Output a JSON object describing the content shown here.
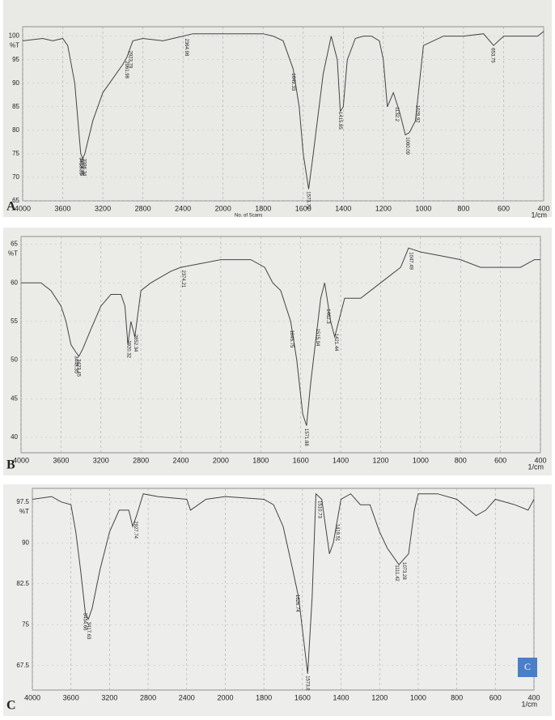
{
  "chart_data": [
    {
      "type": "line",
      "panel": "A",
      "ylabel": "%T",
      "xlabel": "1/cm",
      "footnote": "No. of Scans",
      "xlim": [
        4000,
        400
      ],
      "xticks": [
        4000,
        3600,
        3200,
        2800,
        2400,
        2000,
        1800,
        1600,
        1400,
        1200,
        1000,
        800,
        600,
        400
      ],
      "ylim": [
        65,
        102
      ],
      "yticks": [
        65,
        70,
        75,
        80,
        85,
        90,
        95,
        100
      ],
      "grid": true,
      "color": "#444444",
      "x": [
        4000,
        3800,
        3700,
        3600,
        3550,
        3480,
        3420,
        3400,
        3380,
        3300,
        3200,
        3000,
        2960,
        2900,
        2800,
        2600,
        2400,
        2300,
        2000,
        1800,
        1750,
        1700,
        1650,
        1620,
        1600,
        1573,
        1550,
        1500,
        1460,
        1430,
        1415,
        1400,
        1380,
        1340,
        1300,
        1260,
        1220,
        1200,
        1180,
        1150,
        1120,
        1090,
        1070,
        1040,
        1020,
        1000,
        900,
        800,
        700,
        650,
        600,
        500,
        430,
        400
      ],
      "values": [
        99,
        99.5,
        99,
        99.5,
        98,
        90,
        75,
        74,
        75,
        82,
        88,
        94,
        95.5,
        99,
        99.5,
        99,
        100,
        100.5,
        100.5,
        100.5,
        100,
        99,
        93,
        85,
        75,
        67.5,
        75,
        92,
        100,
        95,
        84,
        85,
        95,
        99.5,
        100,
        100,
        99,
        95,
        85,
        88,
        84,
        79,
        79.5,
        82,
        90,
        98,
        100,
        100,
        100.5,
        98,
        100,
        100,
        100,
        101
      ],
      "peaks": [
        3418.89,
        3414.75,
        3386.34,
        2961.98,
        2923.79,
        2364.98,
        1649.33,
        1573.73,
        1415.85,
        1132.2,
        1080.09,
        1029.92,
        653.75
      ]
    },
    {
      "type": "line",
      "panel": "B",
      "ylabel": "%T",
      "xlabel": "1/cm",
      "xlim": [
        4000,
        400
      ],
      "xticks": [
        4000,
        3600,
        3200,
        2800,
        2400,
        2000,
        1800,
        1600,
        1400,
        1200,
        1000,
        800,
        600,
        400
      ],
      "ylim": [
        38,
        66
      ],
      "yticks": [
        40,
        45,
        50,
        55,
        60,
        65
      ],
      "grid": true,
      "color": "#444444",
      "x": [
        4000,
        3800,
        3700,
        3650,
        3600,
        3550,
        3500,
        3450,
        3420,
        3380,
        3300,
        3200,
        3100,
        3000,
        2960,
        2930,
        2900,
        2860,
        2800,
        2700,
        2500,
        2400,
        2200,
        2000,
        1850,
        1780,
        1740,
        1700,
        1650,
        1620,
        1590,
        1571,
        1550,
        1500,
        1480,
        1450,
        1430,
        1410,
        1380,
        1300,
        1250,
        1200,
        1150,
        1100,
        1060,
        1000,
        900,
        800,
        700,
        600,
        500,
        430,
        400
      ],
      "values": [
        60,
        60,
        59,
        58,
        57,
        55,
        52,
        51,
        50.5,
        51.5,
        54,
        57,
        58.5,
        58.5,
        57,
        52,
        55,
        53,
        59,
        60,
        61.5,
        62,
        62.5,
        63,
        63,
        62,
        60,
        59,
        55,
        50,
        43,
        41.5,
        47,
        58,
        60,
        55,
        53,
        55,
        58,
        58,
        59,
        60,
        61,
        62,
        64.5,
        64,
        63.5,
        63,
        62,
        62,
        62,
        63,
        63
      ],
      "peaks": [
        3448.35,
        3423.45,
        2920.32,
        2852.34,
        2374.21,
        1645.75,
        1571.88,
        1515.94,
        1462.3,
        1421.44,
        1047.49
      ]
    },
    {
      "type": "line",
      "panel": "C",
      "badge": "C",
      "ylabel": "%T",
      "xlabel": "1/cm",
      "xlim": [
        4000,
        400
      ],
      "xticks": [
        4000,
        3600,
        3200,
        2800,
        2400,
        2000,
        1800,
        1600,
        1400,
        1200,
        1000,
        800,
        600,
        400
      ],
      "ylim": [
        63,
        100
      ],
      "yticks": [
        67.5,
        75,
        82.5,
        90,
        97.5
      ],
      "grid": true,
      "color": "#444444",
      "x": [
        4000,
        3800,
        3700,
        3600,
        3550,
        3500,
        3450,
        3420,
        3380,
        3300,
        3200,
        3100,
        3000,
        2960,
        2920,
        2850,
        2700,
        2400,
        2360,
        2200,
        2000,
        1800,
        1750,
        1700,
        1650,
        1620,
        1573,
        1550,
        1530,
        1500,
        1460,
        1440,
        1400,
        1350,
        1300,
        1250,
        1200,
        1160,
        1100,
        1050,
        1020,
        1000,
        900,
        800,
        700,
        650,
        600,
        500,
        430,
        400
      ],
      "values": [
        98,
        98.5,
        97.5,
        97,
        92,
        85,
        77,
        76,
        78,
        85,
        92,
        96,
        96,
        93,
        95,
        99,
        98.5,
        98,
        96,
        98,
        98.5,
        98,
        97,
        93,
        85,
        80,
        66,
        80,
        99,
        98,
        88,
        90,
        98,
        99,
        97,
        97,
        92,
        89,
        86,
        88,
        96,
        99,
        99,
        98,
        95,
        96,
        98,
        97,
        96,
        98
      ],
      "peaks": [
        3454.66,
        3417.63,
        2927.74,
        1626.74,
        1573.8,
        1510.73,
        1419.51,
        1111.42,
        1073.28
      ]
    }
  ]
}
